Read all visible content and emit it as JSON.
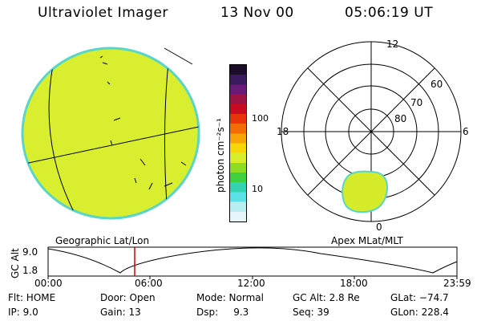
{
  "header": {
    "title": "Ultraviolet Imager",
    "date": "13 Nov 00",
    "time": "05:06:19 UT"
  },
  "colors": {
    "earth_fill": "#d9ee2e",
    "earth_edge": "#58d6c7",
    "polar_blob": "#d6ec2a",
    "marker_line": "#d00000"
  },
  "colorbar": {
    "label": "photon cm⁻²s⁻¹",
    "ticks": [
      "100",
      "10"
    ],
    "colors": [
      "#1a0c2a",
      "#3b1a5e",
      "#6a1b7a",
      "#9d1346",
      "#c70b20",
      "#e8340b",
      "#f46c08",
      "#f7a407",
      "#f7d60a",
      "#d8ee2b",
      "#8fdc25",
      "#3fd040",
      "#33d3b0",
      "#5be1e6",
      "#b6eef2",
      "#e6f5f7"
    ]
  },
  "left_panel": {
    "caption": "Geographic Lat/Lon"
  },
  "right_panel": {
    "caption": "Apex MLat/MLT",
    "mlt_labels": {
      "top": "12",
      "left": "18",
      "right": "6",
      "bottom": "0"
    },
    "lat_labels": [
      "60",
      "70",
      "80"
    ]
  },
  "timeline": {
    "y_axis_label": "GC Alt",
    "y_ticks": [
      "9.0",
      "1.8"
    ],
    "x_ticks": [
      "00:00",
      "06:00",
      "12:00",
      "18:00",
      "23:59"
    ],
    "marker_time": "05:06"
  },
  "footer": {
    "row1": {
      "flt": "Flt: HOME",
      "door": "Door: Open",
      "mode": "Mode: Normal",
      "gcalt": "GC Alt: 2.8 Re",
      "glat": "GLat: −74.7"
    },
    "row2": {
      "ip": "IP:  9.0",
      "gain": "Gain: 13",
      "dsp": "Dsp:     9.3",
      "seq": "Seq: 39",
      "glon": "GLon: 228.4"
    }
  }
}
